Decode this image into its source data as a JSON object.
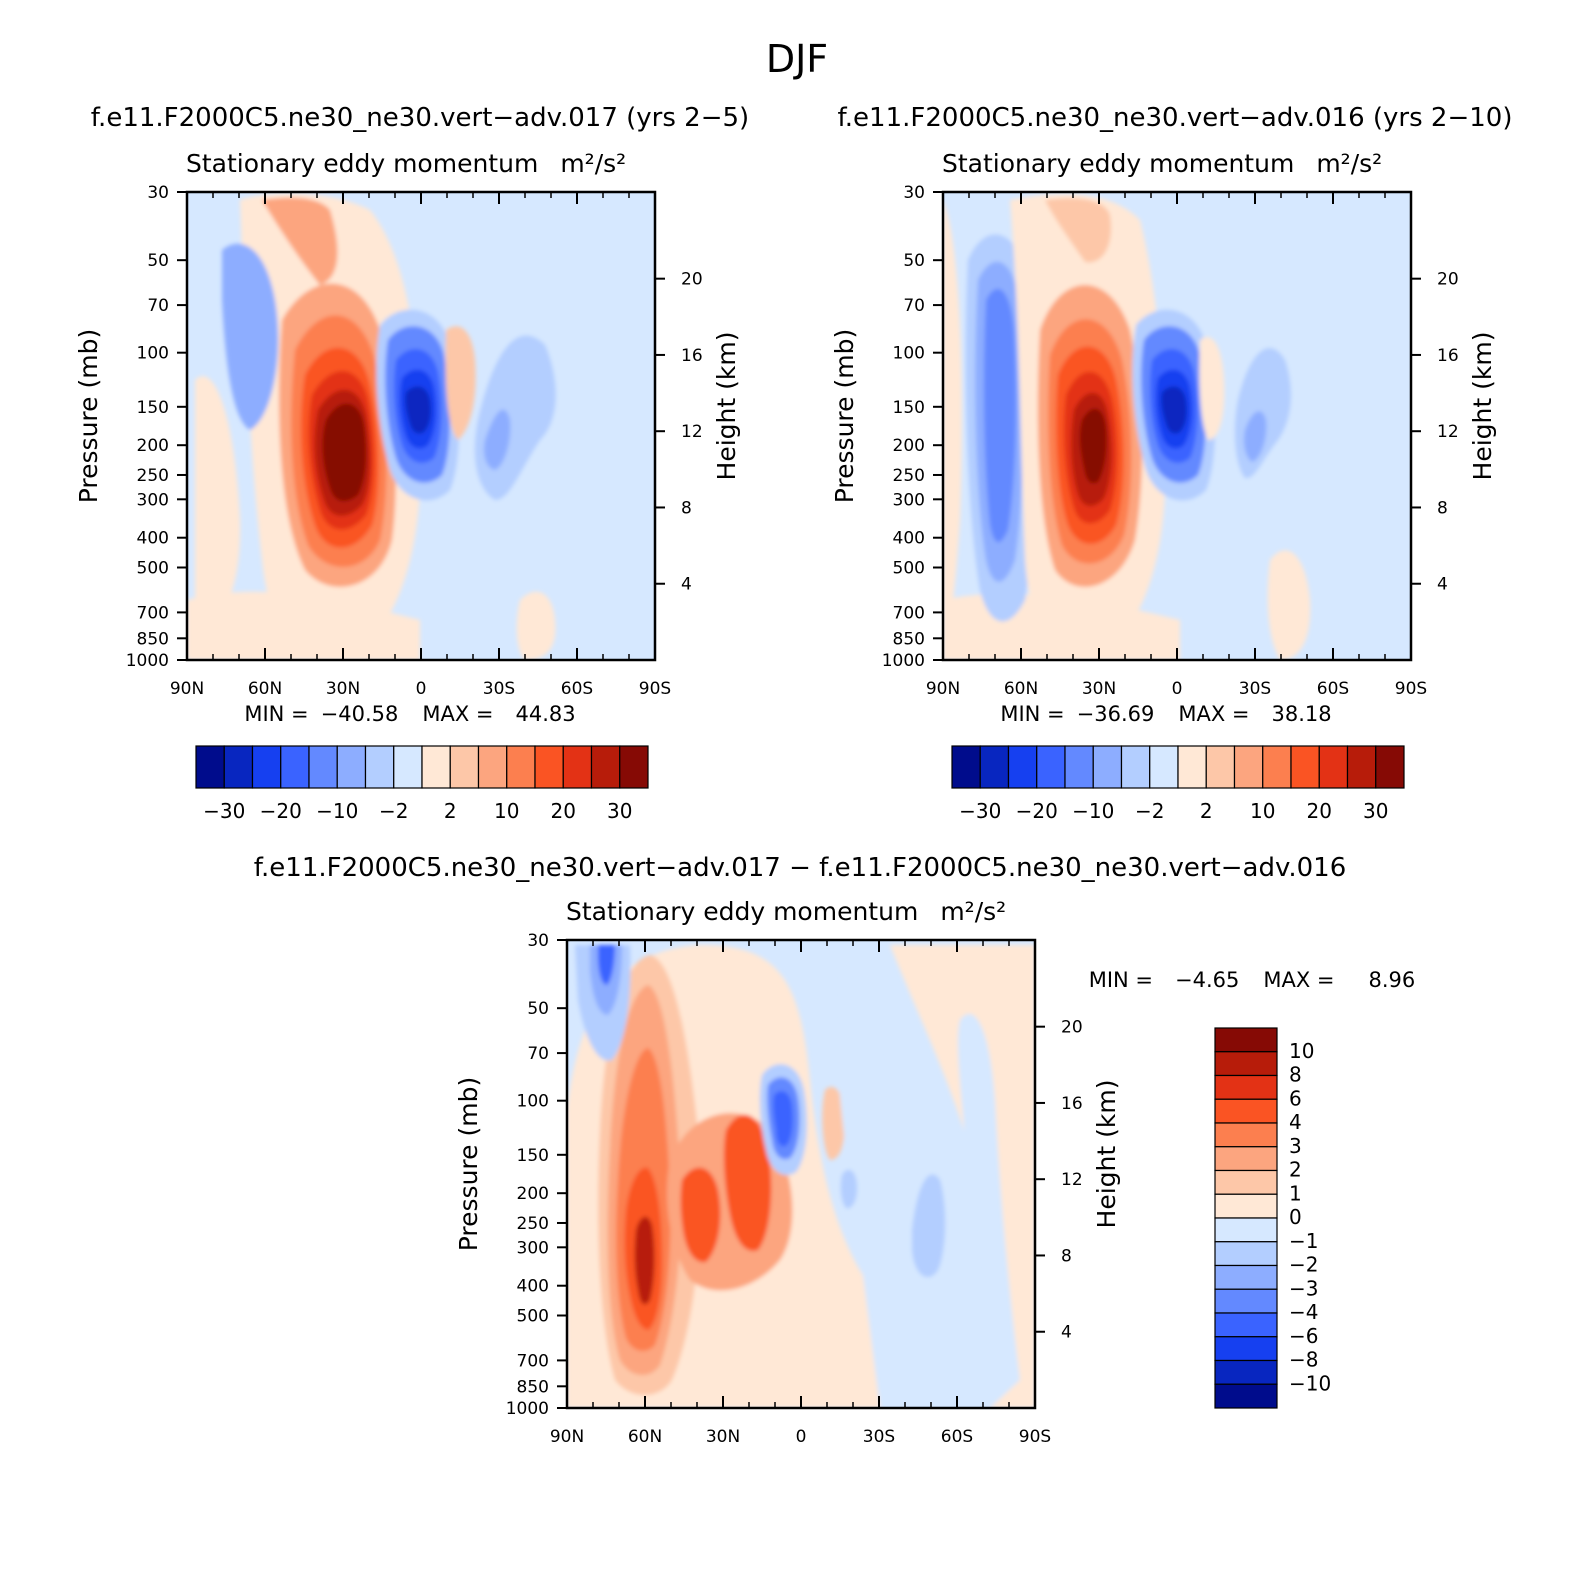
{
  "page_title": "DJF",
  "colors": {
    "red_scale": [
      "#ffe8d6",
      "#fdc7a8",
      "#fca57f",
      "#fc7f4f",
      "#fa5423",
      "#e33215",
      "#b71c0a",
      "#860a05"
    ],
    "blue_scale": [
      "#d6e8ff",
      "#b3ceff",
      "#8dadff",
      "#6389ff",
      "#3a63ff",
      "#1640f0",
      "#0826c0",
      "#000c8c"
    ]
  },
  "chart_data": [
    {
      "id": "case1",
      "type": "heatmap",
      "case_title": "f.e11.F2000C5.ne30_ne30.vert−adv.017 (yrs 2−5)",
      "subtitle": "Stationary eddy momentum",
      "units": "m²/s²",
      "xlabel": "",
      "ylabel": "Pressure (mb)",
      "y2label": "Height (km)",
      "x_ticks": [
        "90N",
        "60N",
        "30N",
        "0",
        "30S",
        "60S",
        "90S"
      ],
      "y_ticks": [
        "30",
        "50",
        "70",
        "100",
        "150",
        "200",
        "250",
        "300",
        "400",
        "500",
        "700",
        "850",
        "1000"
      ],
      "y2_ticks": [
        "20",
        "16",
        "12",
        "8",
        "4"
      ],
      "min_label": "MIN =",
      "min": "−40.58",
      "max_label": "MAX =",
      "max": "44.83",
      "levels_labels": [
        "−30",
        "−20",
        "−10",
        "−2",
        "2",
        "10",
        "20",
        "30"
      ],
      "features": [
        {
          "lat": 30,
          "p": 220,
          "value": 44.83
        },
        {
          "lat": 5,
          "p": 150,
          "value": -40.58
        },
        {
          "lat": -35,
          "p": 200,
          "value": -10
        },
        {
          "lat": 60,
          "p": 90,
          "value": -5
        }
      ]
    },
    {
      "id": "case2",
      "type": "heatmap",
      "case_title": "f.e11.F2000C5.ne30_ne30.vert−adv.016 (yrs 2−10)",
      "subtitle": "Stationary eddy momentum",
      "units": "m²/s²",
      "xlabel": "",
      "ylabel": "Pressure (mb)",
      "y2label": "Height (km)",
      "x_ticks": [
        "90N",
        "60N",
        "30N",
        "0",
        "30S",
        "60S",
        "90S"
      ],
      "y_ticks": [
        "30",
        "50",
        "70",
        "100",
        "150",
        "200",
        "250",
        "300",
        "400",
        "500",
        "700",
        "850",
        "1000"
      ],
      "y2_ticks": [
        "20",
        "16",
        "12",
        "8",
        "4"
      ],
      "min_label": "MIN =",
      "min": "−36.69",
      "max_label": "MAX =",
      "max": "38.18",
      "levels_labels": [
        "−30",
        "−20",
        "−10",
        "−2",
        "2",
        "10",
        "20",
        "30"
      ],
      "features": [
        {
          "lat": 30,
          "p": 200,
          "value": 38.18
        },
        {
          "lat": 5,
          "p": 150,
          "value": -36.69
        },
        {
          "lat": -30,
          "p": 200,
          "value": -8
        },
        {
          "lat": 60,
          "p": 200,
          "value": -8
        }
      ]
    },
    {
      "id": "diff",
      "type": "heatmap",
      "case_title": "f.e11.F2000C5.ne30_ne30.vert−adv.017 − f.e11.F2000C5.ne30_ne30.vert−adv.016",
      "subtitle": "Stationary eddy momentum",
      "units": "m²/s²",
      "xlabel": "",
      "ylabel": "Pressure (mb)",
      "y2label": "Height (km)",
      "x_ticks": [
        "90N",
        "60N",
        "30N",
        "0",
        "30S",
        "60S",
        "90S"
      ],
      "y_ticks": [
        "30",
        "50",
        "70",
        "100",
        "150",
        "200",
        "250",
        "300",
        "400",
        "500",
        "700",
        "850",
        "1000"
      ],
      "y2_ticks": [
        "20",
        "16",
        "12",
        "8",
        "4"
      ],
      "min_label": "MIN =",
      "min": "−4.65",
      "max_label": "MAX =",
      "max": "8.96",
      "levels_labels": [
        "10",
        "8",
        "6",
        "4",
        "3",
        "2",
        "1",
        "0",
        "−1",
        "−2",
        "−3",
        "−4",
        "−6",
        "−8",
        "−10"
      ],
      "features": [
        {
          "lat": 60,
          "p": 300,
          "value": 8.96
        },
        {
          "lat": 5,
          "p": 110,
          "value": -4.65
        },
        {
          "lat": 28,
          "p": 220,
          "value": 5
        },
        {
          "lat": 75,
          "p": 40,
          "value": -4
        }
      ]
    }
  ]
}
